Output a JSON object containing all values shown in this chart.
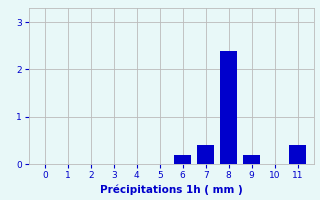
{
  "title": "",
  "xlabel": "Précipitations 1h ( mm )",
  "ylabel": "",
  "bar_values": [
    0,
    0,
    0,
    0,
    0,
    0,
    0.2,
    0.4,
    2.4,
    0.2,
    0,
    0.4
  ],
  "x_positions": [
    0,
    1,
    2,
    3,
    4,
    5,
    6,
    7,
    8,
    9,
    10,
    11
  ],
  "xlim": [
    -0.7,
    11.7
  ],
  "ylim": [
    0,
    3.3
  ],
  "yticks": [
    0,
    1,
    2,
    3
  ],
  "xticks": [
    0,
    1,
    2,
    3,
    4,
    5,
    6,
    7,
    8,
    9,
    10,
    11
  ],
  "bar_color": "#0000cc",
  "bar_edge_color": "#0000cc",
  "background_color": "#e8f8f8",
  "grid_color": "#bbbbbb",
  "tick_color": "#0000cc",
  "label_color": "#0000cc",
  "bar_width": 0.75
}
